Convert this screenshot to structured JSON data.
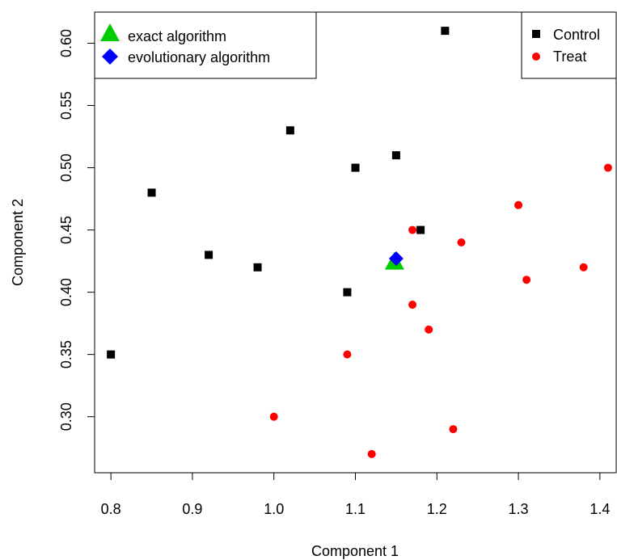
{
  "chart_data": {
    "type": "scatter",
    "title": "",
    "xlabel": "Component 1",
    "ylabel": "Component 2",
    "xlim": [
      0.78,
      1.42
    ],
    "ylim": [
      0.255,
      0.625
    ],
    "x_ticks": [
      0.8,
      0.9,
      1.0,
      1.1,
      1.2,
      1.3,
      1.4
    ],
    "x_tick_labels": [
      "0.8",
      "0.9",
      "1.0",
      "1.1",
      "1.2",
      "1.3",
      "1.4"
    ],
    "y_ticks": [
      0.3,
      0.35,
      0.4,
      0.45,
      0.5,
      0.55,
      0.6
    ],
    "y_tick_labels": [
      "0.30",
      "0.35",
      "0.40",
      "0.45",
      "0.50",
      "0.55",
      "0.60"
    ],
    "grid": false,
    "series": [
      {
        "name": "Control",
        "marker": "square",
        "color": "#000000",
        "points": [
          {
            "x": 0.8,
            "y": 0.35
          },
          {
            "x": 0.85,
            "y": 0.48
          },
          {
            "x": 0.92,
            "y": 0.43
          },
          {
            "x": 0.98,
            "y": 0.42
          },
          {
            "x": 1.02,
            "y": 0.53
          },
          {
            "x": 1.09,
            "y": 0.4
          },
          {
            "x": 1.1,
            "y": 0.5
          },
          {
            "x": 1.15,
            "y": 0.51
          },
          {
            "x": 1.18,
            "y": 0.45
          },
          {
            "x": 1.21,
            "y": 0.61
          }
        ]
      },
      {
        "name": "Treat",
        "marker": "circle",
        "color": "#ff0000",
        "points": [
          {
            "x": 1.0,
            "y": 0.3
          },
          {
            "x": 1.09,
            "y": 0.35
          },
          {
            "x": 1.12,
            "y": 0.27
          },
          {
            "x": 1.17,
            "y": 0.45
          },
          {
            "x": 1.17,
            "y": 0.39
          },
          {
            "x": 1.19,
            "y": 0.37
          },
          {
            "x": 1.22,
            "y": 0.29
          },
          {
            "x": 1.23,
            "y": 0.44
          },
          {
            "x": 1.3,
            "y": 0.47
          },
          {
            "x": 1.31,
            "y": 0.41
          },
          {
            "x": 1.38,
            "y": 0.42
          },
          {
            "x": 1.41,
            "y": 0.5
          }
        ]
      },
      {
        "name": "exact algorithm",
        "marker": "triangle",
        "color": "#00cc00",
        "points": [
          {
            "x": 1.148,
            "y": 0.424
          }
        ]
      },
      {
        "name": "evolutionary algorithm",
        "marker": "diamond",
        "color": "#0000ff",
        "points": [
          {
            "x": 1.15,
            "y": 0.427
          }
        ]
      }
    ],
    "legends": [
      {
        "placement": "top-left",
        "entries": [
          "exact algorithm",
          "evolutionary algorithm"
        ]
      },
      {
        "placement": "top-right",
        "entries": [
          "Control",
          "Treat"
        ]
      }
    ]
  }
}
